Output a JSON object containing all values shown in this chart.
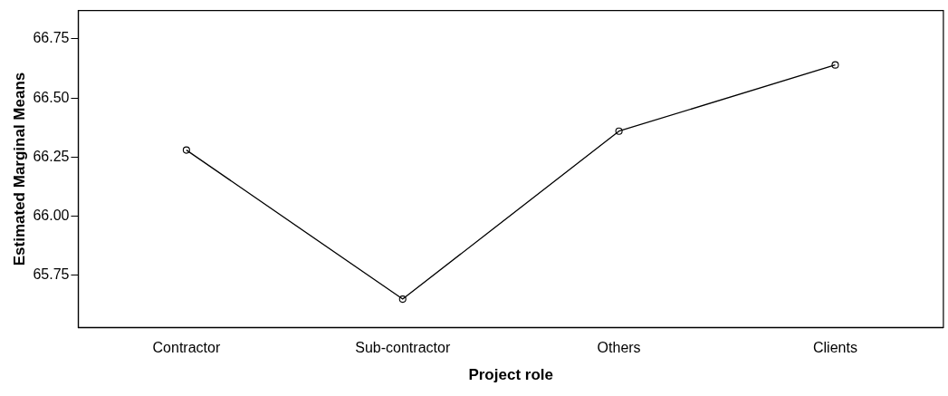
{
  "chart_data": {
    "type": "line",
    "xlabel": "Project role",
    "ylabel": "Estimated Marginal Means",
    "categories": [
      "Contractor",
      "Sub-contractor",
      "Others",
      "Clients"
    ],
    "series": [
      {
        "color": "#000000",
        "values": [
          66.28,
          65.65,
          66.36,
          66.64
        ]
      }
    ],
    "ylim": [
      65.53,
      66.87
    ],
    "yticks": [
      {
        "value": 65.75,
        "label": "65.75"
      },
      {
        "value": 66.0,
        "label": "66.00"
      },
      {
        "value": 66.25,
        "label": "66.25"
      },
      {
        "value": 66.5,
        "label": "66.50"
      },
      {
        "value": 66.75,
        "label": "66.75"
      }
    ],
    "grid": false,
    "legend": false,
    "marker": "circle",
    "line_style": "solid"
  }
}
